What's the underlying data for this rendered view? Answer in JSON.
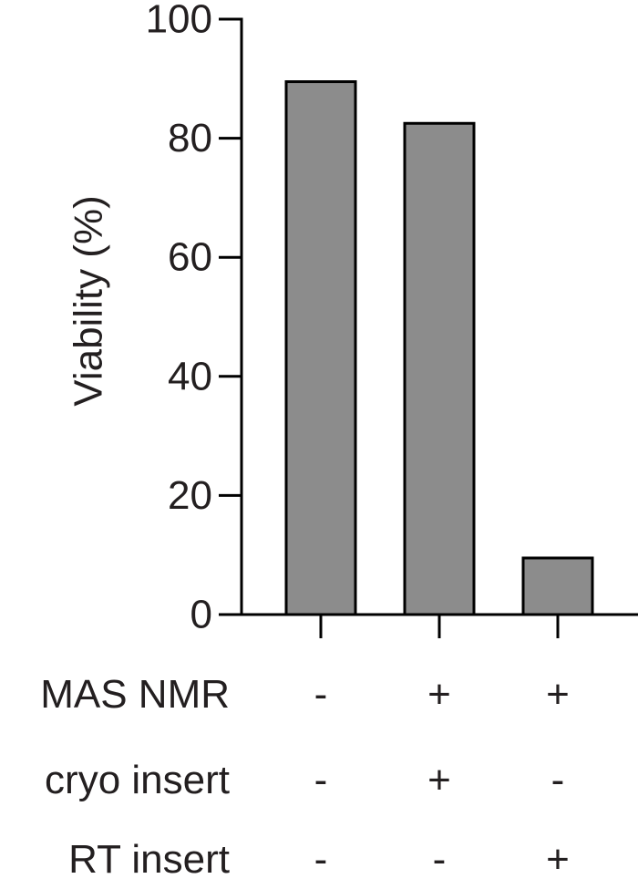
{
  "chart_data": {
    "type": "bar",
    "title": "",
    "ylabel": "Viability (%)",
    "xlabel": "",
    "ylim": [
      0,
      100
    ],
    "yticks": [
      0,
      20,
      40,
      60,
      80,
      100
    ],
    "ytick_labels": [
      "0",
      "20",
      "40",
      "60",
      "80",
      "100"
    ],
    "values": [
      89.5,
      82.5,
      9.5
    ],
    "bar_color": "#8c8c8c",
    "edge_color": "#000000",
    "grid": false,
    "legend": "none",
    "conditions": [
      {
        "label": "MAS NMR",
        "signs": [
          "-",
          "+",
          "+"
        ]
      },
      {
        "label": "cryo insert",
        "signs": [
          "-",
          "+",
          "-"
        ]
      },
      {
        "label": "RT insert",
        "signs": [
          "-",
          "-",
          "+"
        ]
      }
    ]
  }
}
